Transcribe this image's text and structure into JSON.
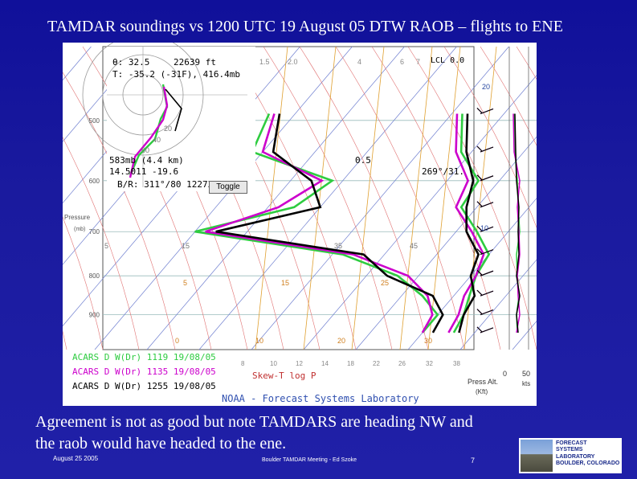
{
  "slide": {
    "title": "TAMDAR soundings vs 1200 UTC 19 August 05 DTW RAOB – flights to ENE",
    "caption_line1": "Agreement is not as good but note TAMDARS are heading NW and",
    "caption_line2": "the raob would have headed to the ene.",
    "footer_date": "August 25 2005",
    "footer_mid": "Boulder TAMDAR Meeting - Ed Szoke",
    "page_number": "7",
    "logo_lines": [
      "FORECAST",
      "SYSTEMS",
      "LABORATORY",
      "BOULDER, COLORADO"
    ]
  },
  "chart_data": {
    "type": "line",
    "chart_kind": "Skew-T log P",
    "footer": "NOAA - Forecast Systems Laboratory",
    "xlabel": "Skew-T log P",
    "ylabel_top": "Pressure",
    "ylabel_bottom": "(mb)",
    "pressure_ticks": [
      "500",
      "600",
      "700",
      "800",
      "900"
    ],
    "temp_top_labels": [
      "1.5",
      "2.0",
      "4",
      "6",
      "7"
    ],
    "temp_bottom_labels": [
      "8",
      "10",
      "12",
      "14",
      "18",
      "22",
      "26",
      "32",
      "38"
    ],
    "iso_labels_row1": [
      "5",
      "15",
      "35",
      "45"
    ],
    "iso_labels_row2": [
      "5",
      "15",
      "25"
    ],
    "iso_labels_row3": [
      "0",
      "10",
      "20",
      "30"
    ],
    "height_labels": [
      "20",
      "10"
    ],
    "readout": {
      "theta": "θ: 32.5",
      "height": "22639 ft",
      "temp": "T: -35.2 (-31F), 416.4mb",
      "level": "583mb (4.4 km)",
      "temp_dew": "14.5011 -19.6",
      "wind": "B/R: 311°/80 1227Z",
      "toggle": "Toggle",
      "lcl": "LCL 0.0",
      "hodo_ring_20": "20",
      "hodo_ring_40": "40",
      "hodo_ring_60": "60",
      "val_05": "0.5",
      "wind_dir": "269°/31."
    },
    "legend": [
      {
        "name": "ACARS D W(Dr) 1119 19/08/05",
        "color": "#2ecc40"
      },
      {
        "name": "ACARS D W(Dr) 1135 19/08/05",
        "color": "#cc00cc"
      },
      {
        "name": "ACARS D W(Dr) 1255 19/08/05",
        "color": "#000000"
      }
    ],
    "right_axis": {
      "label": "Press Alt. (Kft)",
      "speed_label": "kts",
      "speed_ticks": [
        "0",
        "50"
      ]
    },
    "series": [
      {
        "name": "ACARS D W(Dr) 1119 19/08/05",
        "color": "#2ecc40",
        "temp": [
          [
            490,
            -8
          ],
          [
            550,
            -2
          ],
          [
            600,
            6
          ],
          [
            650,
            7
          ],
          [
            700,
            14
          ],
          [
            750,
            20
          ],
          [
            800,
            21
          ],
          [
            850,
            23
          ],
          [
            900,
            25
          ],
          [
            950,
            26
          ]
        ],
        "dew": [
          [
            490,
            -45
          ],
          [
            550,
            -42
          ],
          [
            600,
            -22
          ],
          [
            650,
            -25
          ],
          [
            700,
            -40
          ],
          [
            750,
            -8
          ],
          [
            800,
            6
          ],
          [
            850,
            14
          ],
          [
            900,
            20
          ],
          [
            950,
            20
          ]
        ]
      },
      {
        "name": "ACARS D W(Dr) 1135 19/08/05",
        "color": "#cc00cc",
        "temp": [
          [
            490,
            -9
          ],
          [
            550,
            -3
          ],
          [
            600,
            4
          ],
          [
            650,
            6
          ],
          [
            700,
            13
          ],
          [
            750,
            19
          ],
          [
            800,
            21
          ],
          [
            850,
            22
          ],
          [
            900,
            24
          ],
          [
            950,
            25
          ]
        ],
        "dew": [
          [
            490,
            -44
          ],
          [
            550,
            -40
          ],
          [
            600,
            -24
          ],
          [
            650,
            -28
          ],
          [
            700,
            -38
          ],
          [
            750,
            -6
          ],
          [
            800,
            8
          ],
          [
            850,
            15
          ],
          [
            900,
            19
          ],
          [
            950,
            20
          ]
        ]
      },
      {
        "name": "ACARS D W(Dr) 1255 19/08/05",
        "color": "#000000",
        "temp": [
          [
            490,
            -7
          ],
          [
            550,
            -1
          ],
          [
            600,
            5
          ],
          [
            650,
            8
          ],
          [
            700,
            12
          ],
          [
            750,
            18
          ],
          [
            800,
            20
          ],
          [
            850,
            24
          ],
          [
            900,
            25
          ],
          [
            950,
            27
          ]
        ],
        "dew": [
          [
            490,
            -43
          ],
          [
            550,
            -38
          ],
          [
            600,
            -26
          ],
          [
            650,
            -20
          ],
          [
            700,
            -36
          ],
          [
            750,
            -4
          ],
          [
            800,
            4
          ],
          [
            850,
            16
          ],
          [
            900,
            21
          ],
          [
            950,
            22
          ]
        ]
      }
    ]
  }
}
